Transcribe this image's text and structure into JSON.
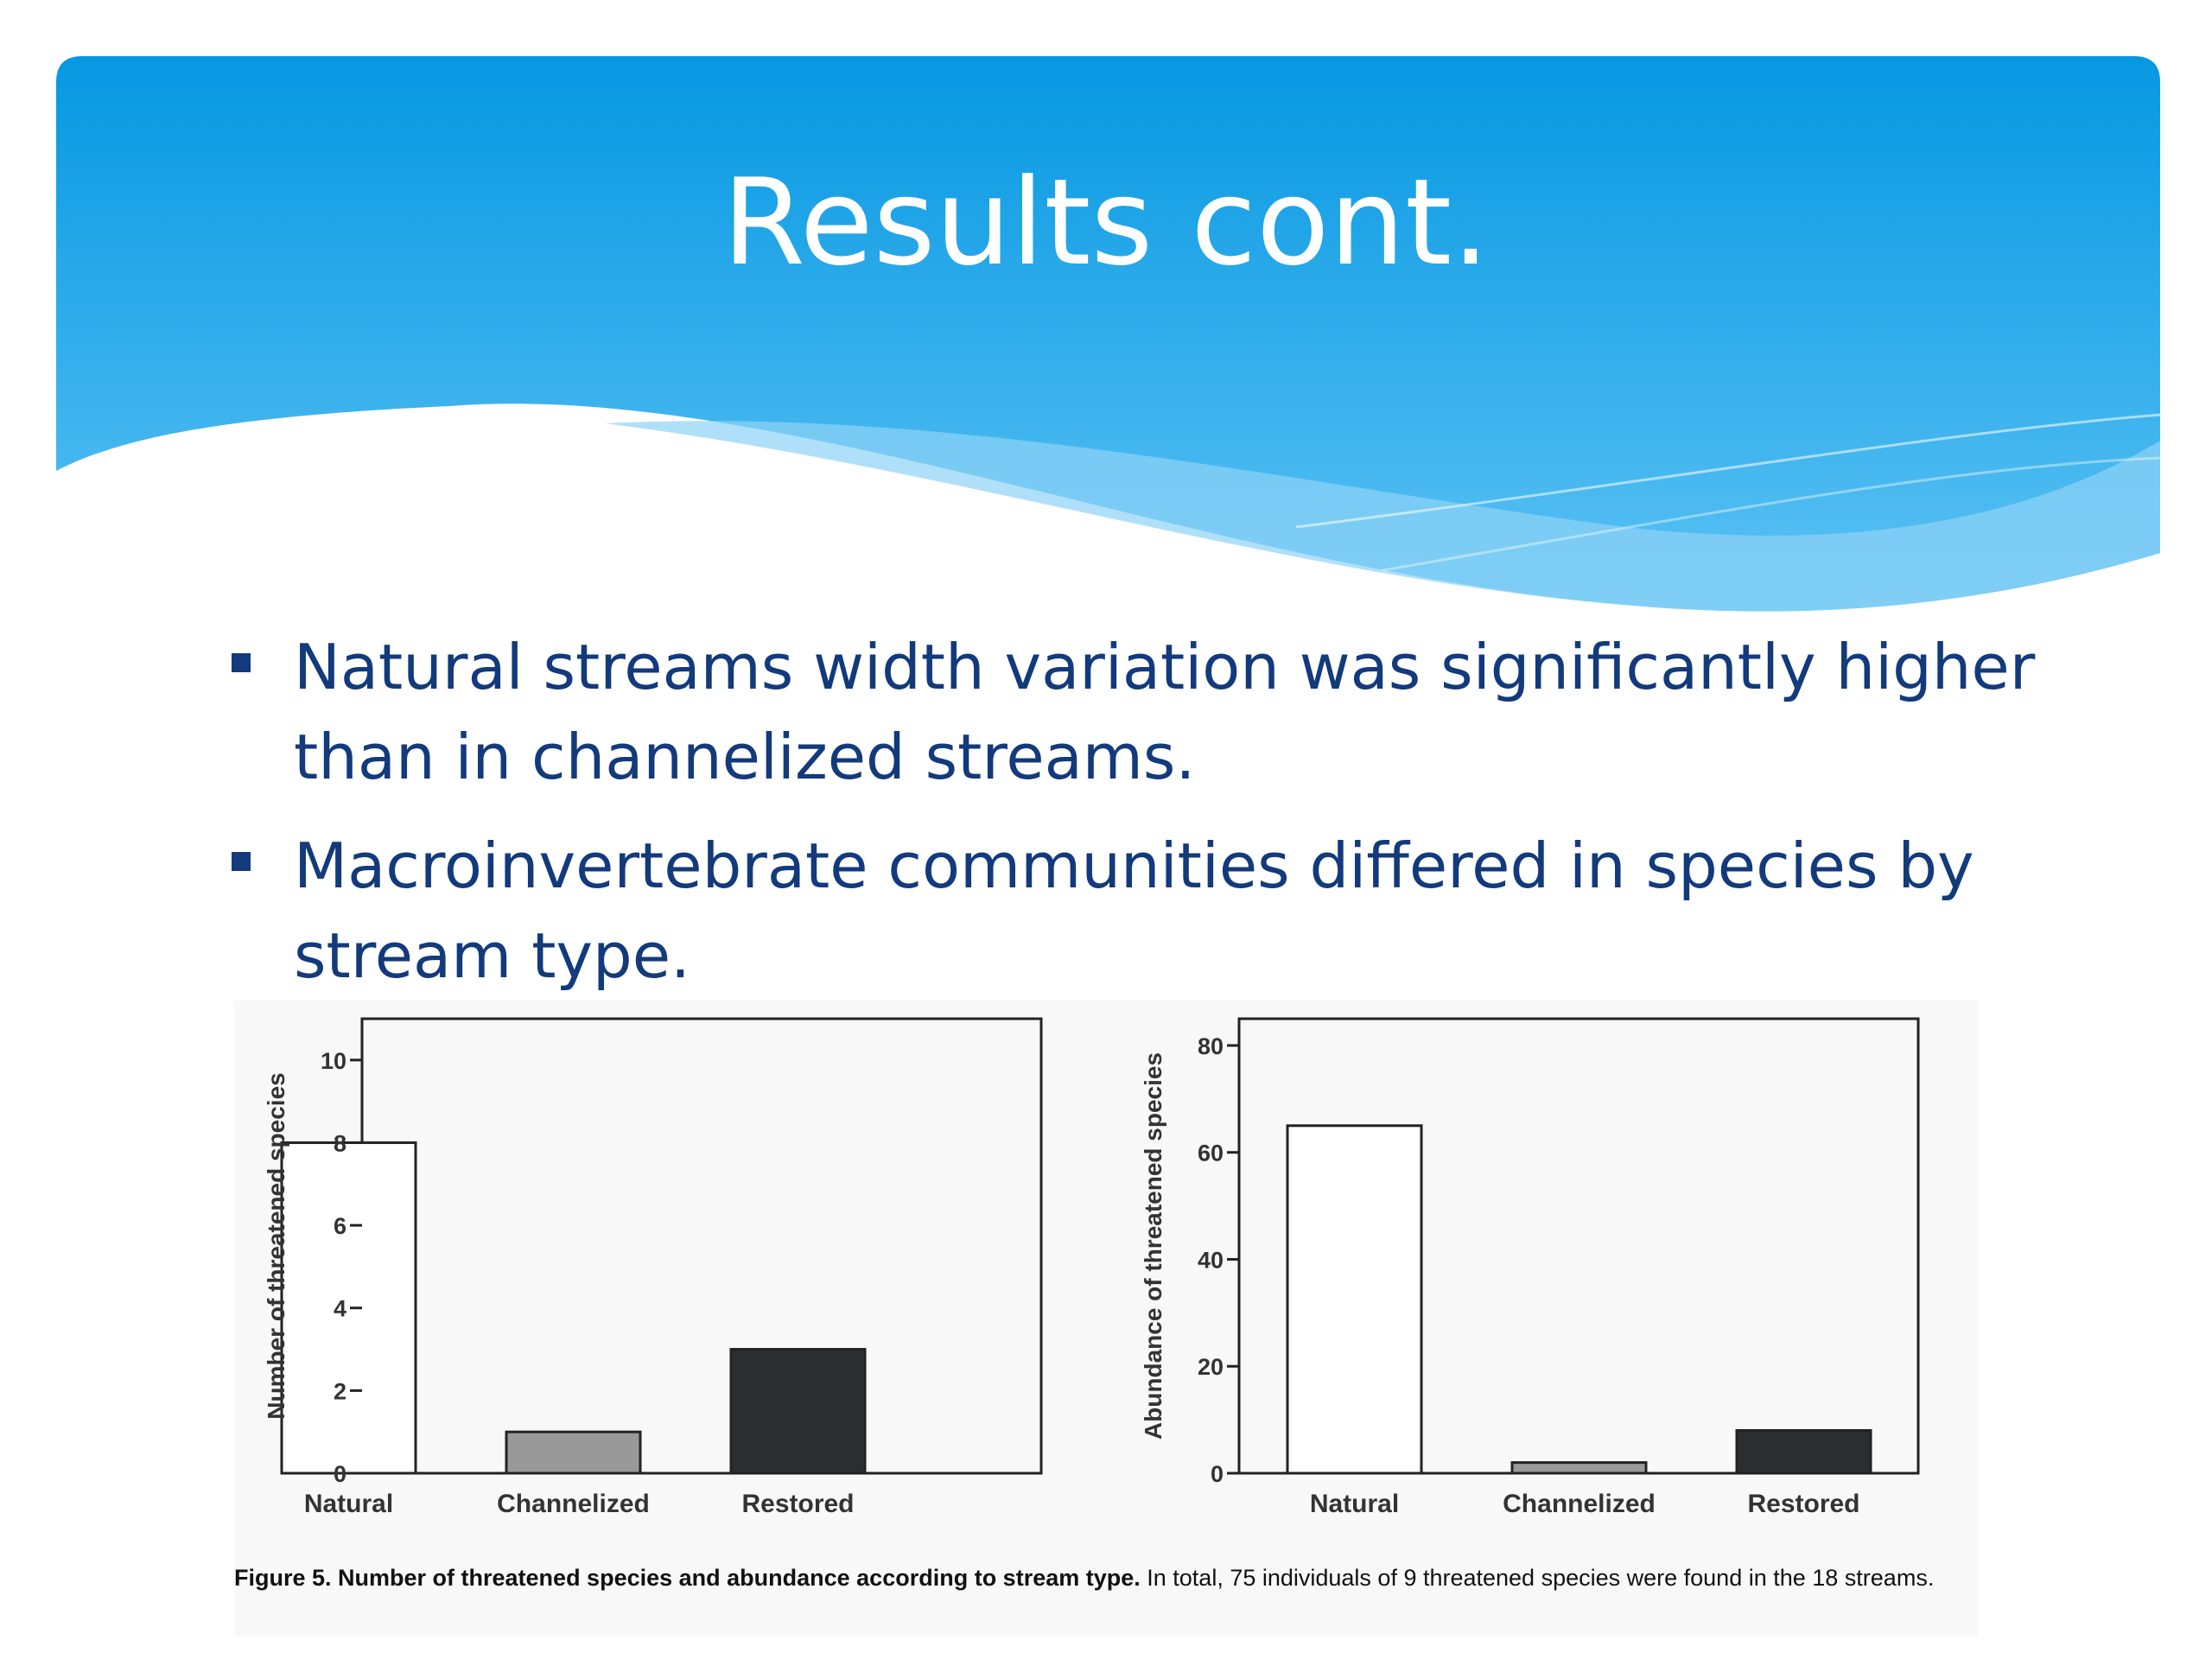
{
  "slide": {
    "title": "Results cont.",
    "bullets": [
      "Natural streams width variation was significantly higher than in channelized streams.",
      "Macroinvertebrate communities differed in species by stream type."
    ]
  },
  "colors": {
    "banner_top": "#0698e2",
    "banner_bottom": "#5cc2f4",
    "bullet_text": "#123a7c",
    "bar_natural": "#ffffff",
    "bar_channelized": "#999999",
    "bar_restored": "#2c2d30"
  },
  "chart_data": [
    {
      "type": "bar",
      "categories": [
        "Natural",
        "Channelized",
        "Restored"
      ],
      "values": [
        8,
        1,
        3
      ],
      "ylabel": "Number of threatened species",
      "ylim": [
        0,
        11
      ],
      "yticks": [
        0,
        2,
        4,
        6,
        8,
        10
      ],
      "bar_colors": [
        "#ffffff",
        "#999999",
        "#2c2d30"
      ],
      "grid": false
    },
    {
      "type": "bar",
      "categories": [
        "Natural",
        "Channelized",
        "Restored"
      ],
      "values": [
        65,
        2,
        8
      ],
      "ylabel": "Abundance of threatened species",
      "ylim": [
        0,
        85
      ],
      "yticks": [
        0,
        20,
        40,
        60,
        80
      ],
      "bar_colors": [
        "#ffffff",
        "#999999",
        "#2c2d30"
      ],
      "grid": false
    }
  ],
  "caption": {
    "bold": "Figure 5. Number of threatened species and abundance according to stream type.",
    "text": " In total, 75 individuals of 9 threatened species were found in the 18 streams."
  }
}
